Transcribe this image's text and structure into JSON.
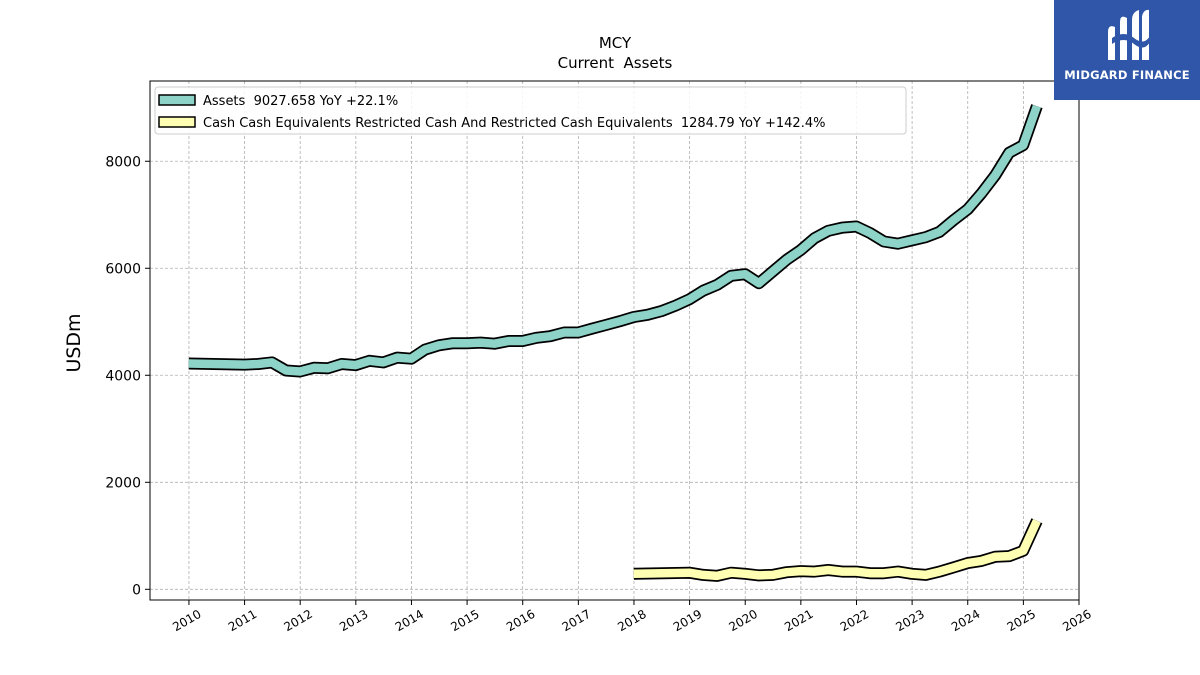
{
  "brand": {
    "name": "MIDGARD FINANCE",
    "logo_icon": "midgard-m-logo-icon",
    "background": "#2f56a8"
  },
  "chart_data": {
    "type": "line",
    "title": "MCY",
    "subtitle": "Current  Assets",
    "xlabel": "",
    "ylabel": "USDm",
    "xlim": [
      2009.3,
      2026.0
    ],
    "ylim": [
      -200,
      9500
    ],
    "xticks": [
      "2010",
      "2011",
      "2012",
      "2013",
      "2014",
      "2015",
      "2016",
      "2017",
      "2018",
      "2019",
      "2020",
      "2021",
      "2022",
      "2023",
      "2024",
      "2025",
      "2026"
    ],
    "yticks": [
      0,
      2000,
      4000,
      6000,
      8000
    ],
    "grid": true,
    "legend_position": "top-left",
    "series": [
      {
        "name": "Assets  9027.658 YoY +22.1%",
        "color": "#8dd3c7",
        "x": [
          "2009-12-31",
          "2010-12-31",
          "2011-03-31",
          "2011-06-30",
          "2011-09-30",
          "2011-12-31",
          "2012-03-31",
          "2012-06-30",
          "2012-09-30",
          "2012-12-31",
          "2013-03-31",
          "2013-06-30",
          "2013-09-30",
          "2013-12-31",
          "2014-03-31",
          "2014-06-30",
          "2014-09-30",
          "2014-12-31",
          "2015-03-31",
          "2015-06-30",
          "2015-09-30",
          "2015-12-31",
          "2016-03-31",
          "2016-06-30",
          "2016-09-30",
          "2016-12-31",
          "2017-03-31",
          "2017-06-30",
          "2017-09-30",
          "2017-12-31",
          "2018-03-31",
          "2018-06-30",
          "2018-09-30",
          "2018-12-31",
          "2019-03-31",
          "2019-06-30",
          "2019-09-30",
          "2019-12-31",
          "2020-03-31",
          "2020-06-30",
          "2020-09-30",
          "2020-12-31",
          "2021-03-31",
          "2021-06-30",
          "2021-09-30",
          "2021-12-31",
          "2022-03-31",
          "2022-06-30",
          "2022-09-30",
          "2022-12-31",
          "2023-03-31",
          "2023-06-30",
          "2023-09-30",
          "2023-12-31",
          "2024-03-31",
          "2024-06-30",
          "2024-09-30",
          "2024-12-31",
          "2025-03-31"
        ],
        "values": [
          4220,
          4200,
          4210,
          4240,
          4090,
          4070,
          4140,
          4130,
          4210,
          4190,
          4270,
          4240,
          4330,
          4310,
          4480,
          4560,
          4600,
          4600,
          4610,
          4590,
          4640,
          4640,
          4700,
          4730,
          4800,
          4800,
          4870,
          4940,
          5010,
          5090,
          5130,
          5200,
          5300,
          5420,
          5580,
          5690,
          5860,
          5890,
          5720,
          5940,
          6160,
          6340,
          6560,
          6700,
          6760,
          6780,
          6660,
          6500,
          6460,
          6520,
          6580,
          6680,
          6900,
          7100,
          7400,
          7740,
          8160,
          8300,
          9030
        ]
      },
      {
        "name": "Cash Cash Equivalents Restricted Cash And Restricted Cash Equivalents  1284.79 YoY +142.4%",
        "color": "#ffffb3",
        "x": [
          "2017-12-31",
          "2018-12-31",
          "2019-03-31",
          "2019-06-30",
          "2019-09-30",
          "2019-12-31",
          "2020-03-31",
          "2020-06-30",
          "2020-09-30",
          "2020-12-31",
          "2021-03-31",
          "2021-06-30",
          "2021-09-30",
          "2021-12-31",
          "2022-03-31",
          "2022-06-30",
          "2022-09-30",
          "2022-12-31",
          "2023-03-31",
          "2023-06-30",
          "2023-09-30",
          "2023-12-31",
          "2024-03-31",
          "2024-06-30",
          "2024-09-30",
          "2024-12-31",
          "2025-03-31"
        ],
        "values": [
          290,
          310,
          270,
          250,
          310,
          290,
          260,
          270,
          320,
          340,
          330,
          360,
          330,
          330,
          300,
          300,
          330,
          290,
          270,
          330,
          410,
          490,
          530,
          610,
          620,
          720,
          1280
        ]
      }
    ]
  }
}
